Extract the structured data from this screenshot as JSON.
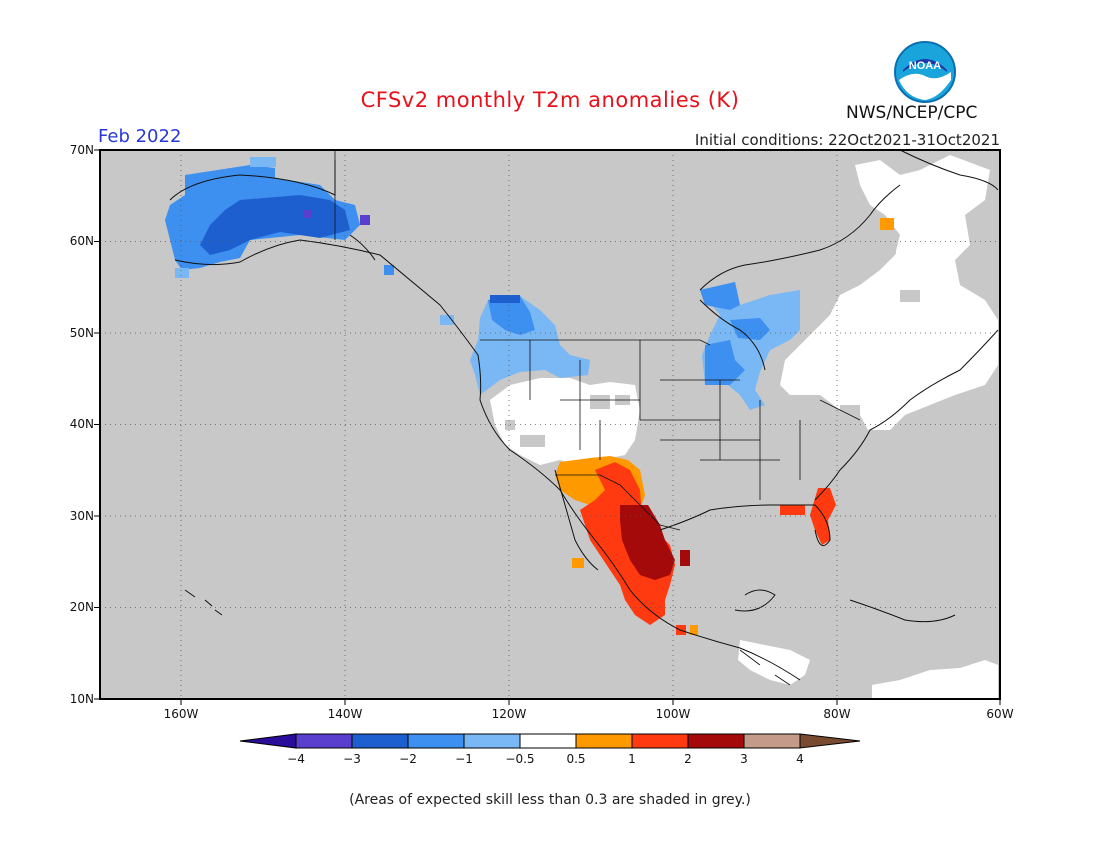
{
  "header": {
    "title": "CFSv2 monthly T2m anomalies (K)",
    "month": "Feb 2022",
    "initial_conditions": "Initial conditions: 22Oct2021-31Oct2021",
    "org": "NWS/NCEP/CPC",
    "logo_text": "NOAA"
  },
  "axes": {
    "lat_labels": [
      "70N",
      "60N",
      "50N",
      "40N",
      "30N",
      "20N",
      "10N"
    ],
    "lon_labels": [
      "160W",
      "140W",
      "120W",
      "100W",
      "80W",
      "60W"
    ],
    "lat_range": [
      10,
      70
    ],
    "lon_range": [
      -171,
      -60
    ]
  },
  "colorbar": {
    "ticks": [
      "−4",
      "−3",
      "−2",
      "−1",
      "−0.5",
      "0.5",
      "1",
      "2",
      "3",
      "4"
    ],
    "colors": [
      "#2a0d9a",
      "#5a3fcf",
      "#1e5fd0",
      "#3d8ff0",
      "#7ab8f5",
      "#ffffff",
      "#ff9900",
      "#ff3a10",
      "#a50a0a",
      "#c49a8a",
      "#7a4a30"
    ],
    "grey_color": "#c8c8c8"
  },
  "note": "(Areas of expected skill less than 0.3 are shaded in grey.)"
}
